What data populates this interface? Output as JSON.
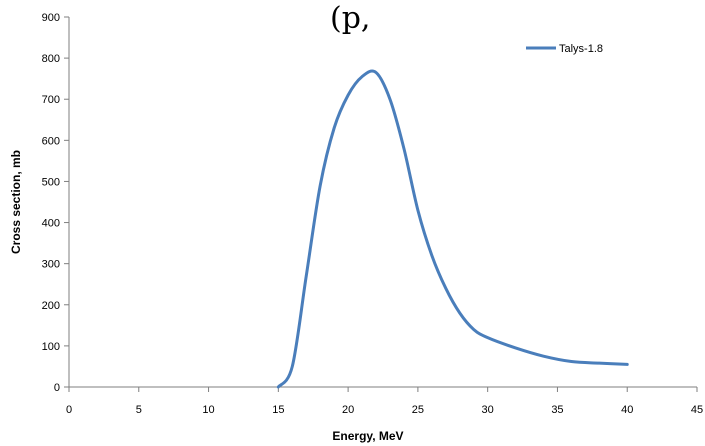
{
  "chart_data": {
    "type": "line",
    "title_fragment": "(p,",
    "title_fragment_right": "",
    "xlabel": "Energy, MeV",
    "ylabel": "Cross section, mb",
    "xlim": [
      0,
      45
    ],
    "ylim": [
      0,
      900
    ],
    "xticks": [
      0,
      5,
      10,
      15,
      20,
      25,
      30,
      35,
      40,
      45
    ],
    "yticks": [
      0,
      100,
      200,
      300,
      400,
      500,
      600,
      700,
      800,
      900
    ],
    "grid": false,
    "legend_position": "top-right",
    "series": [
      {
        "name": "Talys-1.8",
        "color": "#4a7ebb",
        "x": [
          15,
          16,
          17,
          18,
          19,
          20,
          21,
          22,
          23,
          24,
          25,
          26,
          27,
          28,
          29,
          30,
          32,
          34,
          36,
          38,
          40
        ],
        "y": [
          0,
          50,
          270,
          490,
          630,
          710,
          755,
          765,
          700,
          580,
          430,
          320,
          240,
          180,
          140,
          120,
          95,
          75,
          62,
          58,
          55
        ]
      }
    ]
  }
}
